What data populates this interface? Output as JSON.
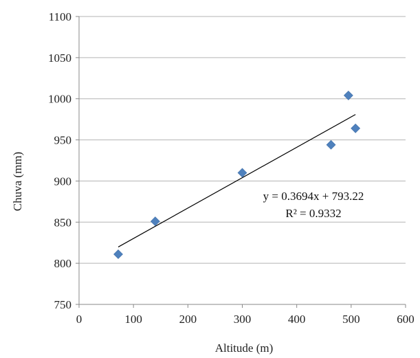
{
  "chart_data": {
    "type": "scatter",
    "title": "",
    "xlabel": "Altitude (m)",
    "ylabel": "Chuva (mm)",
    "xlim": [
      0,
      600
    ],
    "ylim": [
      750,
      1100
    ],
    "x_ticks": [
      0,
      100,
      200,
      300,
      400,
      500,
      600
    ],
    "y_ticks": [
      750,
      800,
      850,
      900,
      950,
      1000,
      1050,
      1100
    ],
    "x_tick_labels": [
      "0",
      "100",
      "200",
      "300",
      "400",
      "500",
      "600"
    ],
    "y_tick_labels": [
      "750",
      "800",
      "850",
      "900",
      "950",
      "1000",
      "1050",
      "1100"
    ],
    "grid": "horizontal",
    "legend": "none",
    "marker_color": "#4f81bd",
    "series": [
      {
        "marker": "diamond",
        "points": [
          {
            "x": 72,
            "y": 811
          },
          {
            "x": 140,
            "y": 851
          },
          {
            "x": 300,
            "y": 910
          },
          {
            "x": 463,
            "y": 944
          },
          {
            "x": 495,
            "y": 1004
          },
          {
            "x": 508,
            "y": 964
          }
        ]
      }
    ],
    "trendline": {
      "type": "linear",
      "slope": 0.3694,
      "intercept": 793.22,
      "x_range": [
        72,
        508
      ],
      "color": "#000000"
    },
    "annotations": {
      "equation": "y = 0.3694x + 793.22",
      "r_squared": "R² = 0.9332"
    }
  }
}
